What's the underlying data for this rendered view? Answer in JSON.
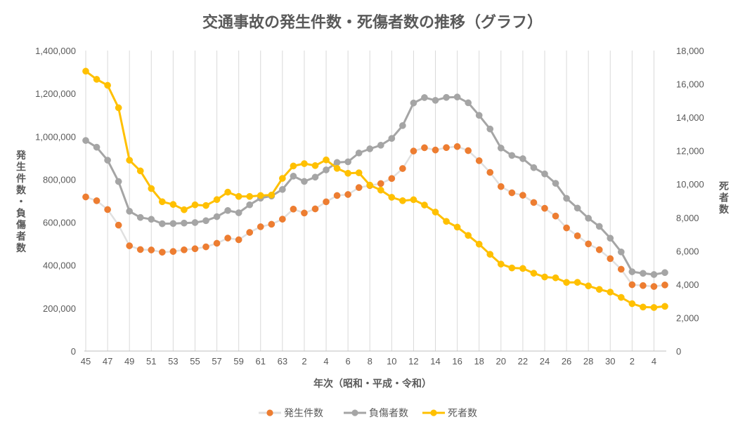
{
  "chart_data": {
    "type": "line",
    "title": "交通事故の発生件数・死傷者数の推移（グラフ）",
    "xlabel": "年次（昭和・平成・令和）",
    "ylabel_left": "発生件数・負傷者数",
    "ylabel_right": "死者数",
    "ylim_left": [
      0,
      1400000
    ],
    "ylim_right": [
      0,
      18000
    ],
    "yticks_left": [
      "0",
      "200,000",
      "400,000",
      "600,000",
      "800,000",
      "1,000,000",
      "1,200,000",
      "1,400,000"
    ],
    "yticks_right": [
      "0",
      "2,000",
      "4,000",
      "6,000",
      "8,000",
      "10,000",
      "12,000",
      "14,000",
      "16,000",
      "18,000"
    ],
    "categories": [
      "45",
      "46",
      "47",
      "48",
      "49",
      "50",
      "51",
      "52",
      "53",
      "54",
      "55",
      "56",
      "57",
      "58",
      "59",
      "60",
      "61",
      "62",
      "63",
      "1",
      "2",
      "3",
      "4",
      "5",
      "6",
      "7",
      "8",
      "9",
      "10",
      "11",
      "12",
      "13",
      "14",
      "15",
      "16",
      "17",
      "18",
      "19",
      "20",
      "21",
      "22",
      "23",
      "24",
      "25",
      "26",
      "27",
      "28",
      "29",
      "30",
      "1",
      "2",
      "3",
      "4",
      "5"
    ],
    "x_tick_labels": [
      "45",
      "",
      "47",
      "",
      "49",
      "",
      "51",
      "",
      "53",
      "",
      "55",
      "",
      "57",
      "",
      "59",
      "",
      "61",
      "",
      "63",
      "",
      "2",
      "",
      "4",
      "",
      "6",
      "",
      "8",
      "",
      "10",
      "",
      "12",
      "",
      "14",
      "",
      "16",
      "",
      "18",
      "",
      "20",
      "",
      "22",
      "",
      "24",
      "",
      "26",
      "",
      "28",
      "",
      "30",
      "",
      "2",
      "",
      "4",
      ""
    ],
    "series": [
      {
        "name": "発生件数",
        "axis": "left",
        "color": "#ED7D31",
        "values": [
          718080,
          700290,
          659283,
          586713,
          490452,
          472938,
          471041,
          460649,
          464037,
          471573,
          476677,
          485578,
          502261,
          526362,
          518642,
          552788,
          579190,
          590723,
          614481,
          661363,
          643097,
          662392,
          695345,
          724678,
          729461,
          761794,
          771085,
          780401,
          803878,
          850371,
          931950,
          947253,
          936721,
          947993,
          952720,
          933828,
          886864,
          832454,
          766394,
          737474,
          725924,
          692084,
          665157,
          629033,
          573842,
          536899,
          499201,
          472165,
          430601,
          381237,
          309178,
          305196,
          300839,
          307930
        ]
      },
      {
        "name": "負傷者数",
        "axis": "left",
        "color": "#A5A5A5",
        "values": [
          981096,
          949689,
          889198,
          789948,
          651420,
          622467,
          613957,
          593211,
          594116,
          596282,
          598719,
          607346,
          626192,
          654822,
          644321,
          681346,
          712330,
          722179,
          752845,
          814832,
          790295,
          810245,
          844003,
          878633,
          881723,
          922677,
          942203,
          958925,
          990675,
          1050397,
          1155707,
          1181039,
          1168029,
          1181681,
          1183617,
          1156633,
          1098199,
          1034652,
          945703,
          911215,
          896297,
          854613,
          825392,
          781494,
          711374,
          666023,
          618853,
          580850,
          525846,
          461775,
          369476,
          362131,
          356601,
          365595
        ]
      },
      {
        "name": "死者数",
        "axis": "right",
        "color": "#FFC000",
        "values": [
          16765,
          16278,
          15918,
          14574,
          11432,
          10792,
          9734,
          8945,
          8783,
          8466,
          8760,
          8719,
          9073,
          9520,
          9262,
          9261,
          9317,
          9347,
          10344,
          11086,
          11227,
          11109,
          11451,
          10942,
          10649,
          10679,
          9942,
          9640,
          9211,
          9006,
          9066,
          8747,
          8326,
          7768,
          7425,
          6927,
          6403,
          5796,
          5209,
          4979,
          4948,
          4663,
          4438,
          4388,
          4113,
          4117,
          3904,
          3694,
          3532,
          3215,
          2839,
          2636,
          2610,
          2678
        ]
      }
    ],
    "legend": [
      "発生件数",
      "負傷者数",
      "死者数"
    ],
    "legend_position": "bottom",
    "grid": "vertical"
  }
}
